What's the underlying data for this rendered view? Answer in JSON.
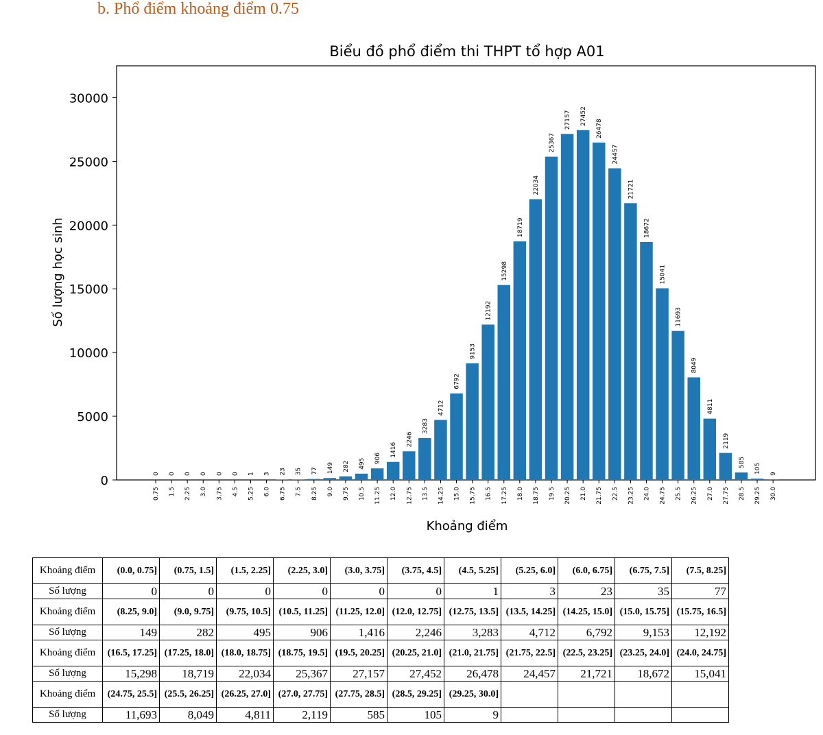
{
  "heading": "b.   Phổ điểm khoảng điểm 0.75",
  "chart_data": {
    "type": "bar",
    "title": "Biểu đồ phổ điểm thi THPT tổ hợp A01",
    "xlabel": "Khoảng điểm",
    "ylabel": "Số lượng học sinh",
    "color": "#1f77b4",
    "ylim": [
      0,
      32500
    ],
    "yticks": [
      0,
      5000,
      10000,
      15000,
      20000,
      25000,
      30000
    ],
    "categories": [
      "0.75",
      "1.5",
      "2.25",
      "3.0",
      "3.75",
      "4.5",
      "5.25",
      "6.0",
      "6.75",
      "7.5",
      "8.25",
      "9.0",
      "9.75",
      "10.5",
      "11.25",
      "12.0",
      "12.75",
      "13.5",
      "14.25",
      "15.0",
      "15.75",
      "16.5",
      "17.25",
      "18.0",
      "18.75",
      "19.5",
      "20.25",
      "21.0",
      "21.75",
      "22.5",
      "23.25",
      "24.0",
      "24.75",
      "25.5",
      "26.25",
      "27.0",
      "27.75",
      "28.5",
      "29.25",
      "30.0"
    ],
    "values": [
      0,
      0,
      0,
      0,
      0,
      0,
      1,
      3,
      23,
      35,
      77,
      149,
      282,
      495,
      906,
      1416,
      2246,
      3283,
      4712,
      6792,
      9153,
      12192,
      15298,
      18719,
      22034,
      25367,
      27157,
      27452,
      26478,
      24457,
      21721,
      18672,
      15041,
      11693,
      8049,
      4811,
      2119,
      585,
      105,
      9
    ]
  },
  "table": {
    "range_header": "Khoảng điểm",
    "count_header": "Số lượng",
    "blocks": [
      {
        "ranges": [
          "(0.0, 0.75]",
          "(0.75, 1.5]",
          "(1.5, 2.25]",
          "(2.25, 3.0]",
          "(3.0, 3.75]",
          "(3.75, 4.5]",
          "(4.5, 5.25]",
          "(5.25, 6.0]",
          "(6.0, 6.75]",
          "(6.75, 7.5]",
          "(7.5, 8.25]"
        ],
        "counts": [
          "0",
          "0",
          "0",
          "0",
          "0",
          "0",
          "1",
          "3",
          "23",
          "35",
          "77"
        ]
      },
      {
        "ranges": [
          "(8.25, 9.0]",
          "(9.0, 9.75]",
          "(9.75, 10.5]",
          "(10.5, 11.25]",
          "(11.25, 12.0]",
          "(12.0, 12.75]",
          "(12.75, 13.5]",
          "(13.5, 14.25]",
          "(14.25, 15.0]",
          "(15.0, 15.75]",
          "(15.75, 16.5]"
        ],
        "counts": [
          "149",
          "282",
          "495",
          "906",
          "1,416",
          "2,246",
          "3,283",
          "4,712",
          "6,792",
          "9,153",
          "12,192"
        ]
      },
      {
        "ranges": [
          "(16.5, 17.25]",
          "(17.25, 18.0]",
          "(18.0, 18.75]",
          "(18.75, 19.5]",
          "(19.5, 20.25]",
          "(20.25, 21.0]",
          "(21.0, 21.75]",
          "(21.75, 22.5]",
          "(22.5, 23.25]",
          "(23.25, 24.0]",
          "(24.0, 24.75]"
        ],
        "counts": [
          "15,298",
          "18,719",
          "22,034",
          "25,367",
          "27,157",
          "27,452",
          "26,478",
          "24,457",
          "21,721",
          "18,672",
          "15,041"
        ]
      },
      {
        "ranges": [
          "(24.75, 25.5]",
          "(25.5, 26.25]",
          "(26.25, 27.0]",
          "(27.0, 27.75]",
          "(27.75, 28.5]",
          "(28.5, 29.25]",
          "(29.25, 30.0]",
          "",
          "",
          "",
          ""
        ],
        "counts": [
          "11,693",
          "8,049",
          "4,811",
          "2,119",
          "585",
          "105",
          "9",
          "",
          "",
          "",
          ""
        ]
      }
    ]
  }
}
